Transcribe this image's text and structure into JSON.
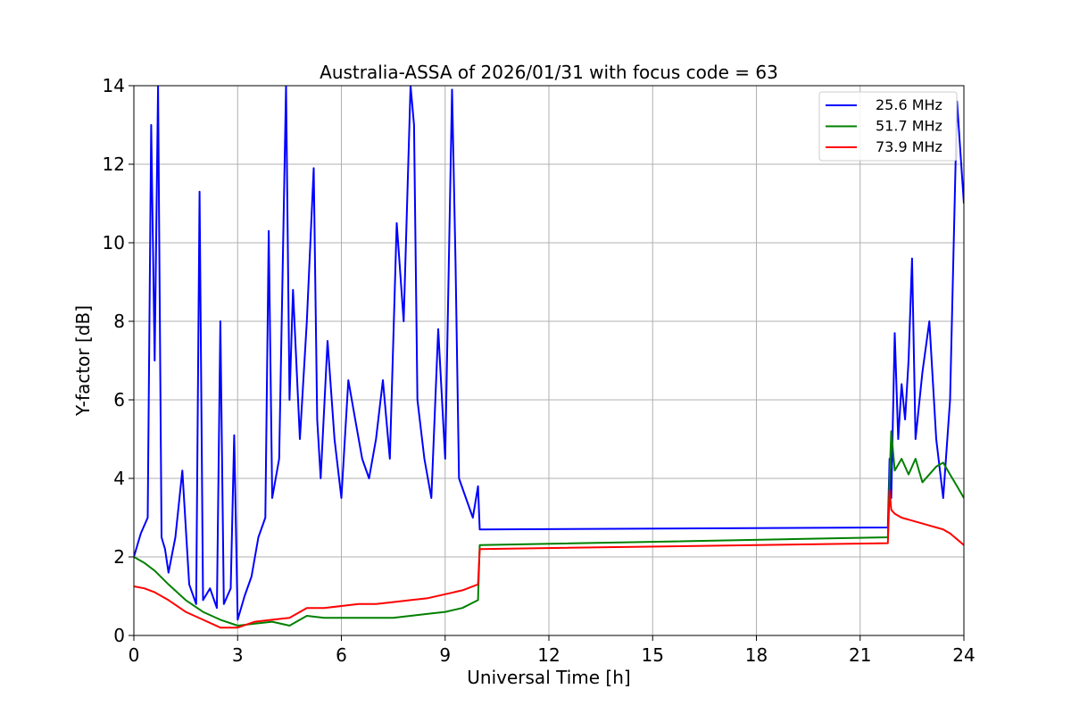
{
  "chart_data": {
    "type": "line",
    "title": "Australia-ASSA of 2026/01/31 with focus code = 63",
    "xlabel": "Universal Time [h]",
    "ylabel": "Y-factor [dB]",
    "xlim": [
      0,
      24
    ],
    "ylim": [
      0,
      14
    ],
    "xticks": [
      0,
      3,
      6,
      9,
      12,
      15,
      18,
      21,
      24
    ],
    "yticks": [
      0,
      2,
      4,
      6,
      8,
      10,
      12,
      14
    ],
    "grid": true,
    "legend_position": "top-right",
    "series": [
      {
        "name": "25.6 MHz",
        "color": "#0000ff",
        "x": [
          0.0,
          0.2,
          0.4,
          0.5,
          0.6,
          0.7,
          0.8,
          0.9,
          1.0,
          1.2,
          1.4,
          1.6,
          1.8,
          1.9,
          2.0,
          2.2,
          2.4,
          2.5,
          2.6,
          2.8,
          2.9,
          3.0,
          3.2,
          3.4,
          3.6,
          3.8,
          3.9,
          4.0,
          4.2,
          4.4,
          4.5,
          4.6,
          4.8,
          5.0,
          5.2,
          5.3,
          5.4,
          5.6,
          5.8,
          6.0,
          6.2,
          6.4,
          6.6,
          6.8,
          7.0,
          7.2,
          7.4,
          7.6,
          7.8,
          8.0,
          8.1,
          8.2,
          8.4,
          8.6,
          8.8,
          9.0,
          9.2,
          9.3,
          9.4,
          9.6,
          9.8,
          9.95,
          10.0,
          21.8,
          21.85,
          21.9,
          22.0,
          22.1,
          22.2,
          22.3,
          22.4,
          22.5,
          22.6,
          22.8,
          23.0,
          23.2,
          23.4,
          23.6,
          23.8,
          23.9,
          24.0
        ],
        "y": [
          2.0,
          2.6,
          3.0,
          13.0,
          7.0,
          14.0,
          2.5,
          2.2,
          1.6,
          2.5,
          4.2,
          1.3,
          0.8,
          11.3,
          0.9,
          1.2,
          0.7,
          8.0,
          0.8,
          1.2,
          5.1,
          0.4,
          1.0,
          1.5,
          2.5,
          3.0,
          10.3,
          3.5,
          4.5,
          14.0,
          6.0,
          8.8,
          5.0,
          8.0,
          11.9,
          5.5,
          4.0,
          7.5,
          5.0,
          3.5,
          6.5,
          5.5,
          4.5,
          4.0,
          5.0,
          6.5,
          4.5,
          10.5,
          8.0,
          14.0,
          13.0,
          6.0,
          4.5,
          3.5,
          7.8,
          4.5,
          13.9,
          9.5,
          4.0,
          3.5,
          3.0,
          3.8,
          2.7,
          2.75,
          4.5,
          3.5,
          7.7,
          5.0,
          6.4,
          5.5,
          7.0,
          9.6,
          5.0,
          6.7,
          8.0,
          5.0,
          3.5,
          6.0,
          13.6,
          12.3,
          11.0
        ]
      },
      {
        "name": "51.7 MHz",
        "color": "#008000",
        "x": [
          0.0,
          0.3,
          0.6,
          1.0,
          1.5,
          2.0,
          2.5,
          3.0,
          3.5,
          4.0,
          4.5,
          5.0,
          5.5,
          6.0,
          6.5,
          7.0,
          7.5,
          8.0,
          8.5,
          9.0,
          9.5,
          9.95,
          10.0,
          21.8,
          21.85,
          21.9,
          22.0,
          22.2,
          22.4,
          22.6,
          22.8,
          23.0,
          23.2,
          23.4,
          23.6,
          23.8,
          24.0
        ],
        "y": [
          2.0,
          1.85,
          1.65,
          1.3,
          0.9,
          0.6,
          0.4,
          0.25,
          0.3,
          0.35,
          0.25,
          0.5,
          0.45,
          0.45,
          0.45,
          0.45,
          0.45,
          0.5,
          0.55,
          0.6,
          0.7,
          0.9,
          2.3,
          2.5,
          4.0,
          5.2,
          4.2,
          4.5,
          4.1,
          4.5,
          3.9,
          4.1,
          4.3,
          4.4,
          4.1,
          3.8,
          3.5
        ]
      },
      {
        "name": "73.9 MHz",
        "color": "#ff0000",
        "x": [
          0.0,
          0.3,
          0.6,
          1.0,
          1.5,
          2.0,
          2.5,
          3.0,
          3.5,
          4.0,
          4.5,
          5.0,
          5.5,
          6.0,
          6.5,
          7.0,
          7.5,
          8.0,
          8.5,
          9.0,
          9.5,
          9.95,
          10.0,
          21.8,
          21.85,
          21.9,
          22.0,
          22.2,
          22.4,
          22.6,
          22.8,
          23.0,
          23.2,
          23.4,
          23.6,
          23.8,
          24.0
        ],
        "y": [
          1.25,
          1.2,
          1.1,
          0.9,
          0.6,
          0.4,
          0.2,
          0.2,
          0.35,
          0.4,
          0.45,
          0.7,
          0.7,
          0.75,
          0.8,
          0.8,
          0.85,
          0.9,
          0.95,
          1.05,
          1.15,
          1.3,
          2.2,
          2.35,
          3.7,
          3.2,
          3.1,
          3.0,
          2.95,
          2.9,
          2.85,
          2.8,
          2.75,
          2.7,
          2.6,
          2.45,
          2.3
        ]
      }
    ]
  }
}
